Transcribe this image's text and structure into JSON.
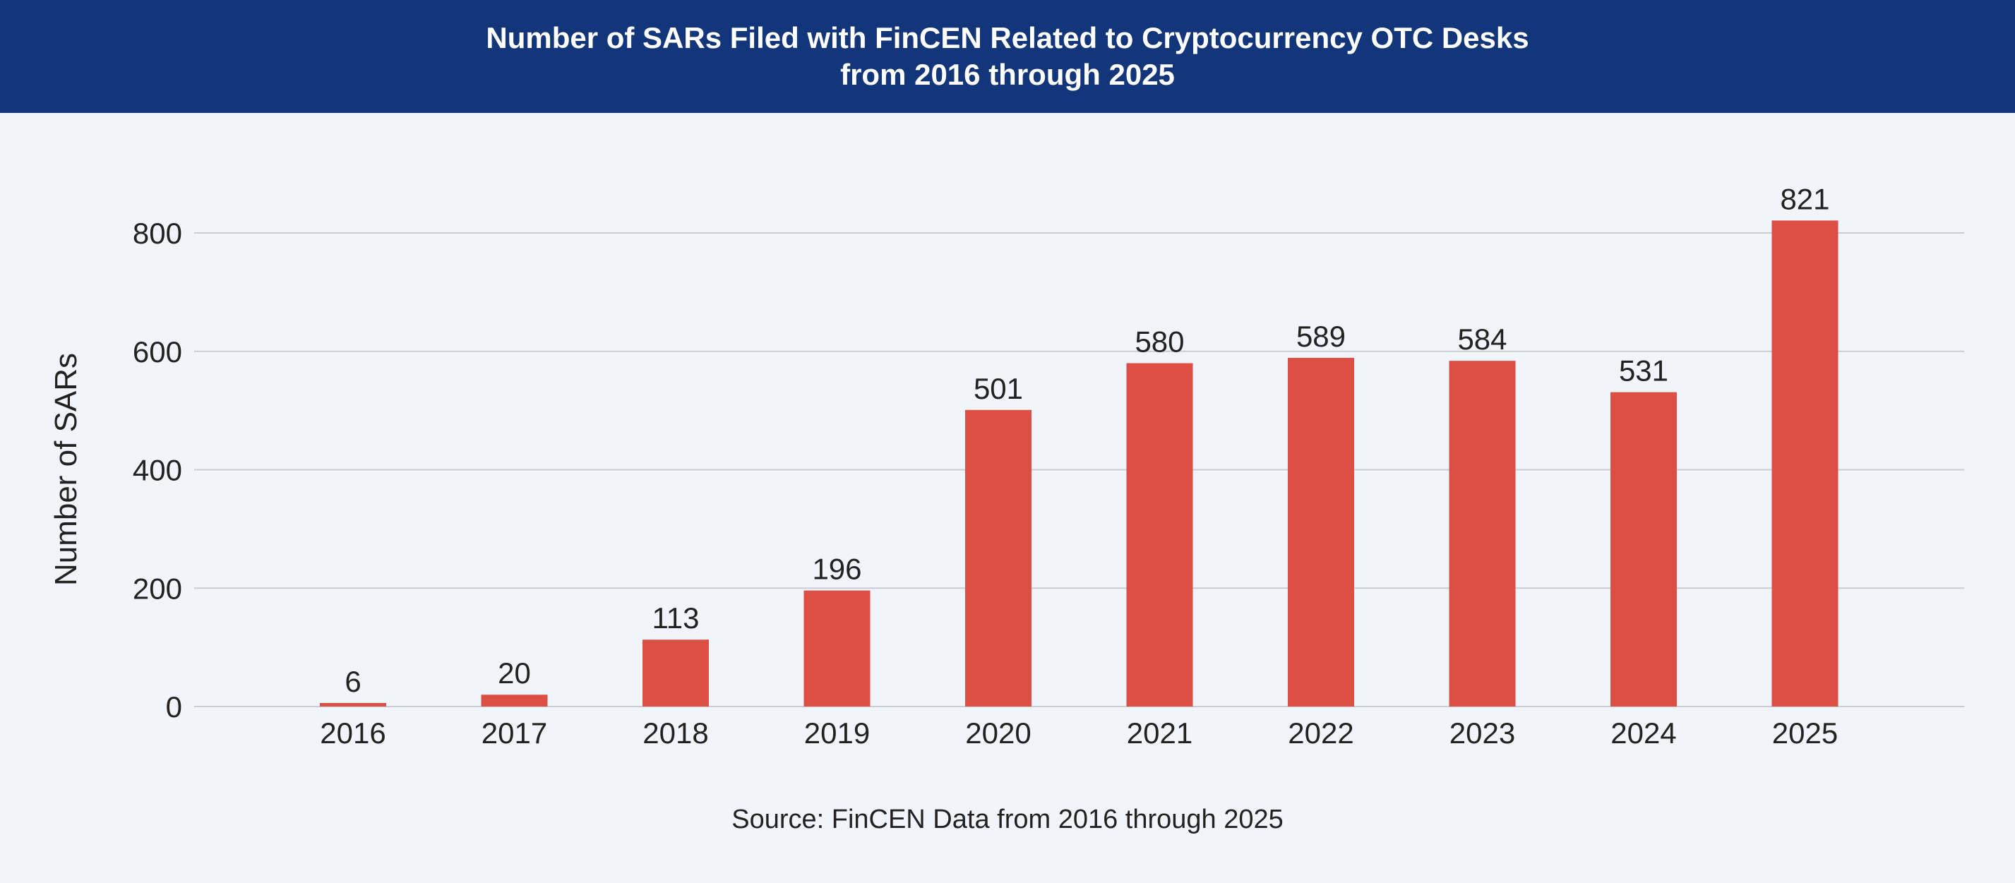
{
  "colors": {
    "header_bg": "#13357a",
    "bar": "#dc4f45",
    "grid": "#c9cdd3",
    "background": "#f1f5fb",
    "text": "#222222"
  },
  "header": {
    "title_line1": "Number of SARs Filed with FinCEN Related to Cryptocurrency OTC Desks",
    "title_line2": "from 2016 through 2025"
  },
  "source": "Source: FinCEN Data from 2016 through 2025",
  "chart_data": {
    "type": "bar",
    "title": "Number of SARs Filed with FinCEN Related to Cryptocurrency OTC Desks from 2016 through 2025",
    "categories": [
      "2016",
      "2017",
      "2018",
      "2019",
      "2020",
      "2021",
      "2022",
      "2023",
      "2024",
      "2025"
    ],
    "values": [
      6,
      20,
      113,
      196,
      501,
      580,
      589,
      584,
      531,
      821
    ],
    "data_labels": [
      "6",
      "20",
      "113",
      "196",
      "501",
      "580",
      "589",
      "584",
      "531",
      "821"
    ],
    "xlabel": "",
    "ylabel": "Number of SARs",
    "ylim": [
      0,
      800
    ],
    "yticks": [
      0,
      200,
      400,
      600,
      800
    ],
    "grid": true,
    "legend": "none"
  }
}
